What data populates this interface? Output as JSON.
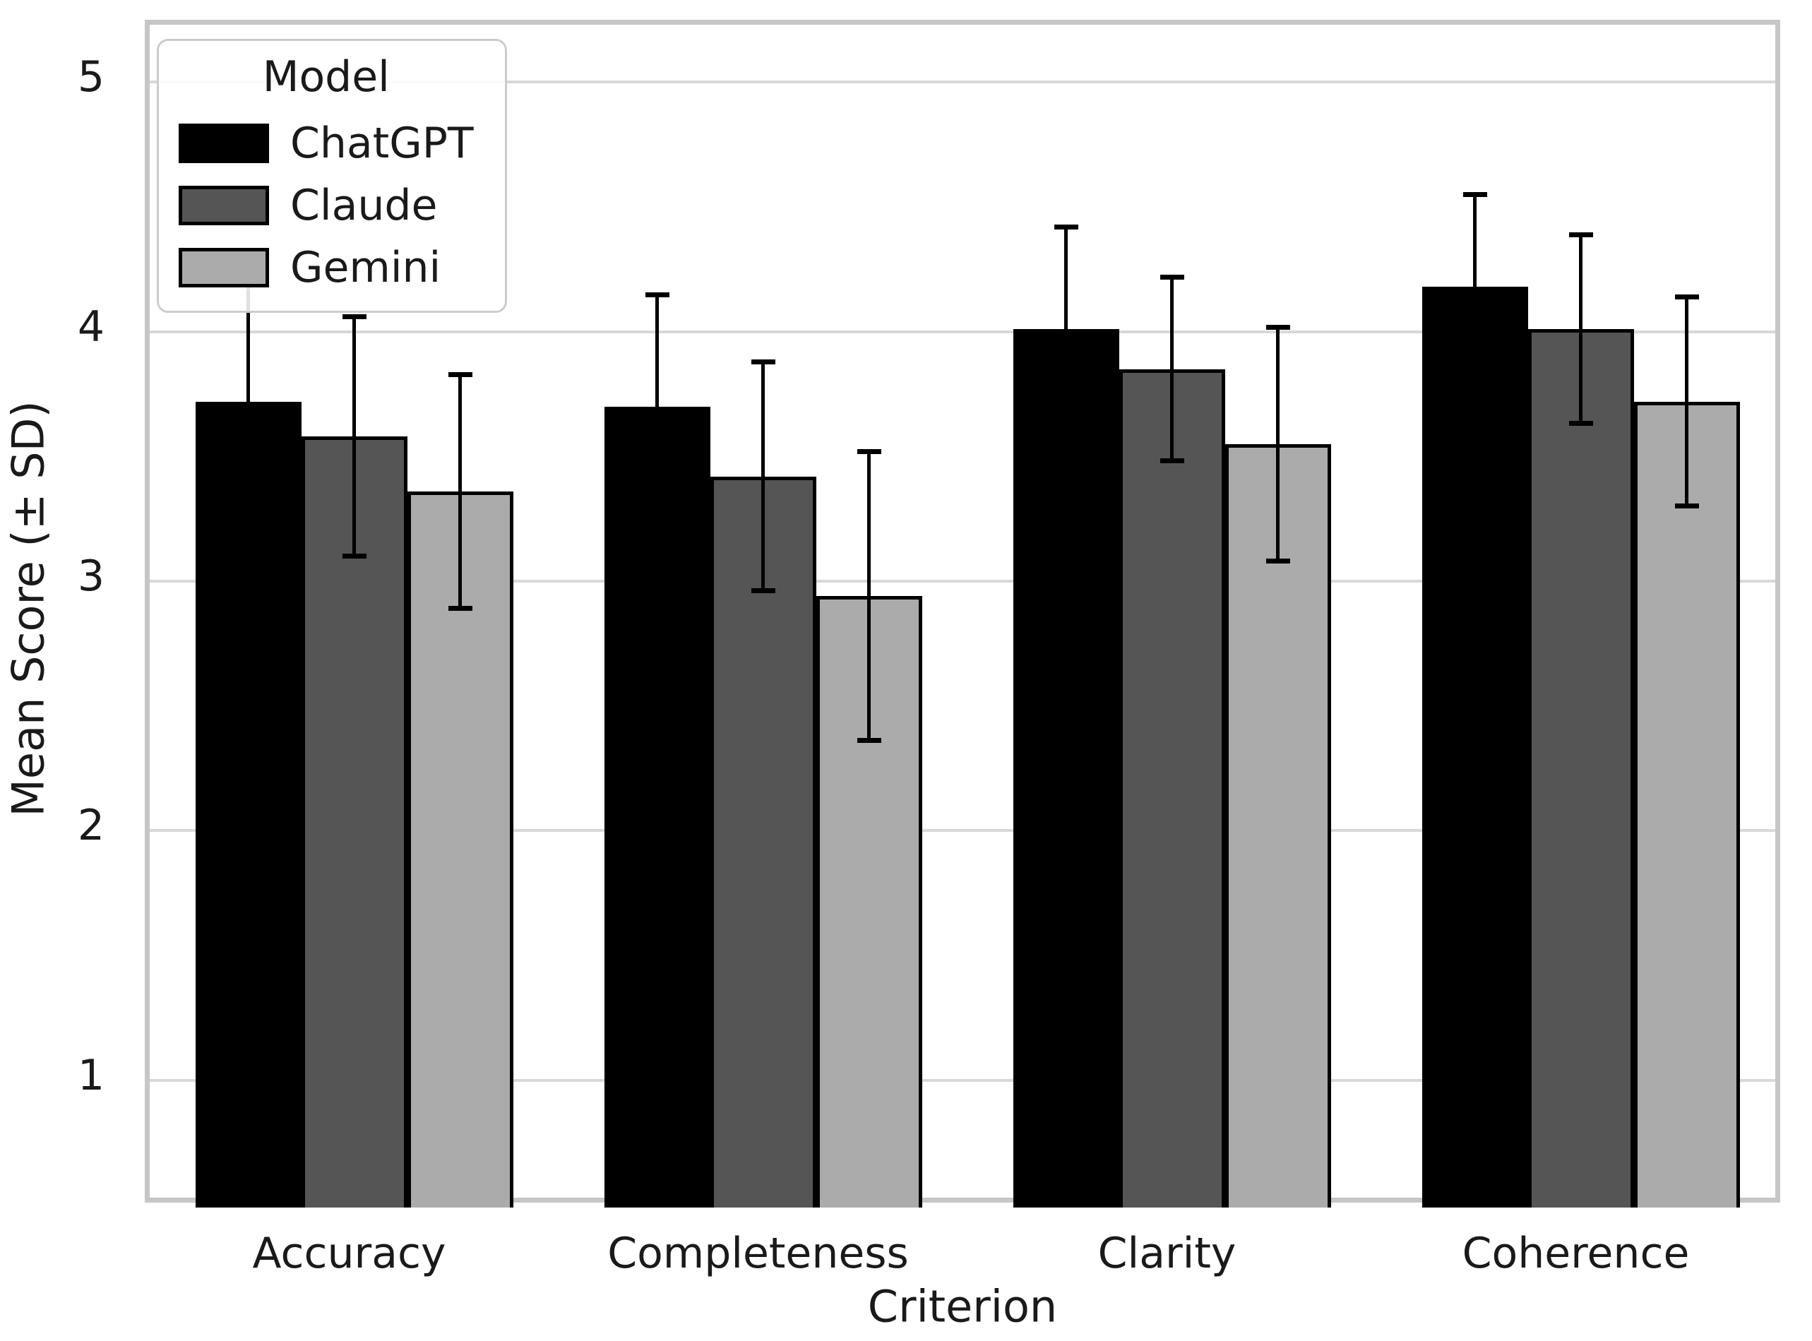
{
  "chart_data": {
    "type": "bar",
    "title": "",
    "xlabel": "Criterion",
    "ylabel": "Mean Score (± SD)",
    "categories": [
      "Accuracy",
      "Completeness",
      "Clarity",
      "Coherence"
    ],
    "series": [
      {
        "name": "ChatGPT",
        "color": "#000000",
        "means": [
          3.72,
          3.7,
          4.01,
          4.18
        ],
        "sds": [
          0.47,
          0.45,
          0.41,
          0.37
        ]
      },
      {
        "name": "Claude",
        "color": "#555555",
        "means": [
          3.58,
          3.42,
          3.85,
          4.01
        ],
        "sds": [
          0.48,
          0.46,
          0.37,
          0.38
        ]
      },
      {
        "name": "Gemini",
        "color": "#ababab",
        "means": [
          3.36,
          2.94,
          3.55,
          3.72
        ],
        "sds": [
          0.47,
          0.58,
          0.47,
          0.42
        ]
      }
    ],
    "yticks": [
      1,
      2,
      3,
      4,
      5
    ],
    "ylim": [
      0.49,
      5.23
    ],
    "grid": true,
    "error_bars": "symmetric ± SD with caps",
    "legend": {
      "title": "Model",
      "position": "upper left"
    }
  },
  "colors": {
    "background": "#ffffff",
    "gridline": "#d8d8d8",
    "spine": "#c6c6c6",
    "text": "#1a1a1a",
    "error_bar": "#000000",
    "legend_border": "#cccccc"
  }
}
